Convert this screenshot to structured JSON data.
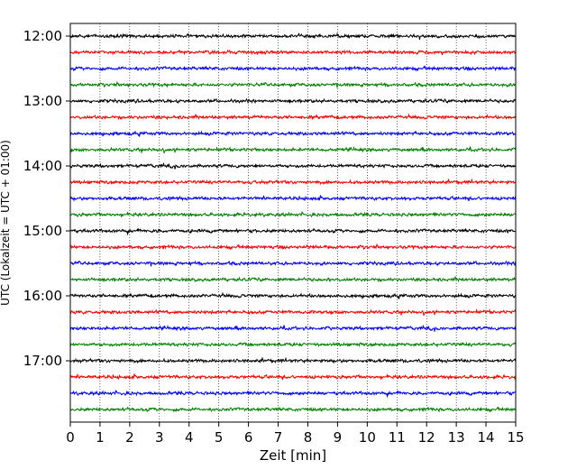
{
  "chart_data": {
    "type": "line",
    "title": "",
    "xlabel": "Zeit  [min]",
    "ylabel": "UTC (Lokalzeit = UTC + 01:00)",
    "xlim": [
      0,
      15
    ],
    "x_ticks": [
      "0",
      "1",
      "2",
      "3",
      "4",
      "5",
      "6",
      "7",
      "8",
      "9",
      "10",
      "11",
      "12",
      "13",
      "14",
      "15"
    ],
    "y_ticks": [
      {
        "label": "12:00",
        "trace": 0
      },
      {
        "label": "13:00",
        "trace": 4
      },
      {
        "label": "14:00",
        "trace": 8
      },
      {
        "label": "15:00",
        "trace": 12
      },
      {
        "label": "16:00",
        "trace": 16
      },
      {
        "label": "17:00",
        "trace": 20
      }
    ],
    "trace_count": 24,
    "trace_interval_minutes": 15,
    "trace_colors": [
      "#000000",
      "#ff0000",
      "#0000ff",
      "#008000"
    ],
    "grid": "vertical dotted",
    "legend": "none"
  }
}
